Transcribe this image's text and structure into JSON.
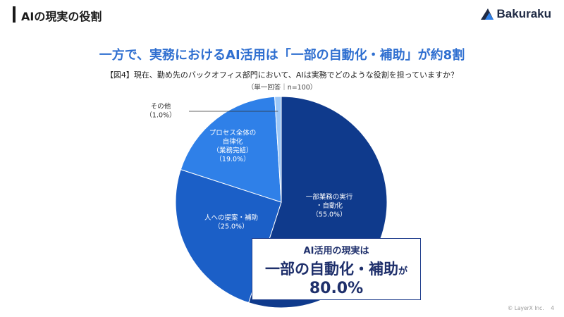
{
  "header": {
    "title": "AIの現実の役割"
  },
  "logo": {
    "name": "Bakuraku"
  },
  "headline": "一方で、実務におけるAI活用は「一部の自動化・補助」が約8割",
  "question": "【図4】現在、勤め先のバックオフィス部門において、AIは実務でどのような役割を担っていますか？",
  "note": "（単一回答｜n=100）",
  "chart_data": {
    "type": "pie",
    "start": "12 o'clock, clockwise",
    "slices": [
      {
        "label_lines": [
          "一部業務の実行",
          "・自動化",
          "（55.0%）"
        ],
        "value": 55.0,
        "color": "#0f3a8c"
      },
      {
        "label_lines": [
          "人への提案・補助",
          "（25.0%）"
        ],
        "value": 25.0,
        "color": "#1b5fc7"
      },
      {
        "label_lines": [
          "プロセス全体の",
          "自律化",
          "（業務完結）",
          "（19.0%）"
        ],
        "value": 19.0,
        "color": "#2f80e8"
      },
      {
        "label_lines": [
          "その他",
          "（1.0%）"
        ],
        "value": 1.0,
        "color": "#9cc7f7"
      }
    ]
  },
  "callout": {
    "line1": "AI活用の現実は",
    "line2_main": "一部の自動化・補助",
    "line2_suffix": "が",
    "line3": "80.0%"
  },
  "footer": {
    "copyright": "© LayerX Inc.",
    "page": "4"
  }
}
